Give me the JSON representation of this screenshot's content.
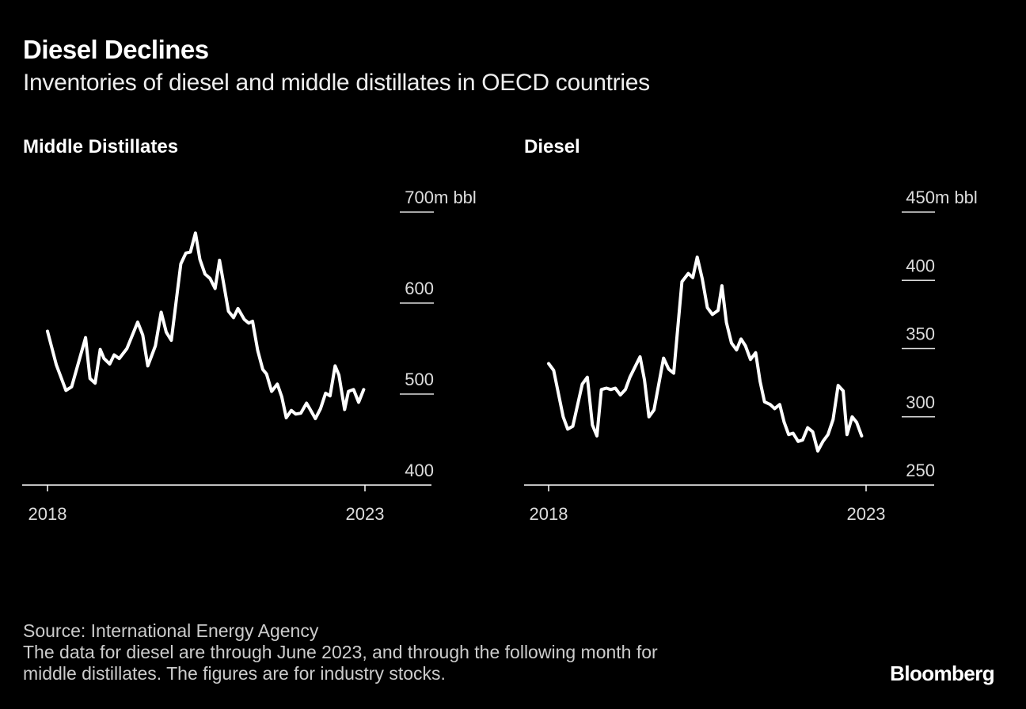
{
  "title": "Diesel Declines",
  "subtitle": "Inventories of diesel and middle distillates in OECD countries",
  "footer": {
    "source": "Source: International Energy Agency",
    "note_line1": "The data for diesel are through June 2023, and through the following month for",
    "note_line2": "middle distillates. The figures are for industry stocks."
  },
  "logo": "Bloomberg",
  "colors": {
    "background": "#000000",
    "line": "#ffffff",
    "axis": "#ffffff"
  },
  "chart_data": [
    {
      "type": "line",
      "title": "Middle Distillates",
      "unit": "m bbl",
      "ylim": [
        400,
        700
      ],
      "yticks": [
        400,
        500,
        600,
        700
      ],
      "xticks": [
        2018,
        2023
      ],
      "grid": false,
      "x": [
        2018.0,
        2018.14,
        2018.29,
        2018.38,
        2018.6,
        2018.67,
        2018.75,
        2018.83,
        2018.89,
        2018.98,
        2019.05,
        2019.13,
        2019.25,
        2019.42,
        2019.5,
        2019.58,
        2019.7,
        2019.79,
        2019.87,
        2019.95,
        2020.1,
        2020.18,
        2020.25,
        2020.33,
        2020.4,
        2020.48,
        2020.56,
        2020.64,
        2020.71,
        2020.78,
        2020.85,
        2020.93,
        2021.0,
        2021.1,
        2021.17,
        2021.23,
        2021.31,
        2021.39,
        2021.45,
        2021.53,
        2021.62,
        2021.69,
        2021.76,
        2021.84,
        2021.91,
        2021.99,
        2022.08,
        2022.13,
        2022.22,
        2022.3,
        2022.38,
        2022.45,
        2022.53,
        2022.59,
        2022.68,
        2022.74,
        2022.82,
        2022.9,
        2022.98
      ],
      "values": [
        569,
        532,
        504,
        508,
        562,
        517,
        512,
        549,
        539,
        533,
        543,
        539,
        550,
        579,
        565,
        531,
        553,
        590,
        568,
        559,
        643,
        655,
        656,
        677,
        648,
        632,
        627,
        616,
        647,
        619,
        591,
        584,
        594,
        582,
        578,
        580,
        548,
        527,
        522,
        503,
        511,
        497,
        474,
        482,
        478,
        479,
        490,
        484,
        473,
        484,
        501,
        498,
        531,
        521,
        483,
        503,
        505,
        491,
        505
      ]
    },
    {
      "type": "line",
      "title": "Diesel",
      "unit": "m bbl",
      "ylim": [
        250,
        450
      ],
      "yticks": [
        250,
        300,
        350,
        400,
        450
      ],
      "xticks": [
        2018,
        2023
      ],
      "grid": false,
      "x": [
        2018.0,
        2018.08,
        2018.23,
        2018.3,
        2018.38,
        2018.53,
        2018.61,
        2018.69,
        2018.76,
        2018.83,
        2018.91,
        2018.98,
        2019.05,
        2019.13,
        2019.21,
        2019.28,
        2019.44,
        2019.51,
        2019.58,
        2019.66,
        2019.81,
        2019.89,
        2019.97,
        2020.1,
        2020.2,
        2020.27,
        2020.34,
        2020.42,
        2020.5,
        2020.58,
        2020.67,
        2020.73,
        2020.8,
        2020.88,
        2020.96,
        2021.03,
        2021.1,
        2021.18,
        2021.26,
        2021.33,
        2021.4,
        2021.49,
        2021.56,
        2021.64,
        2021.71,
        2021.78,
        2021.85,
        2021.93,
        2022.0,
        2022.08,
        2022.16,
        2022.24,
        2022.32,
        2022.4,
        2022.48,
        2022.56,
        2022.64,
        2022.7,
        2022.78,
        2022.85,
        2022.93
      ],
      "values": [
        339,
        334,
        300,
        291,
        293,
        324,
        329,
        294,
        286,
        320,
        321,
        320,
        321,
        316,
        320,
        329,
        344,
        327,
        300,
        305,
        343,
        335,
        332,
        399,
        405,
        402,
        417,
        401,
        380,
        375,
        378,
        396,
        369,
        354,
        349,
        357,
        352,
        342,
        347,
        326,
        311,
        309,
        306,
        309,
        296,
        287,
        288,
        282,
        283,
        292,
        289,
        275,
        282,
        287,
        298,
        323,
        319,
        287,
        300,
        296,
        286
      ]
    }
  ]
}
